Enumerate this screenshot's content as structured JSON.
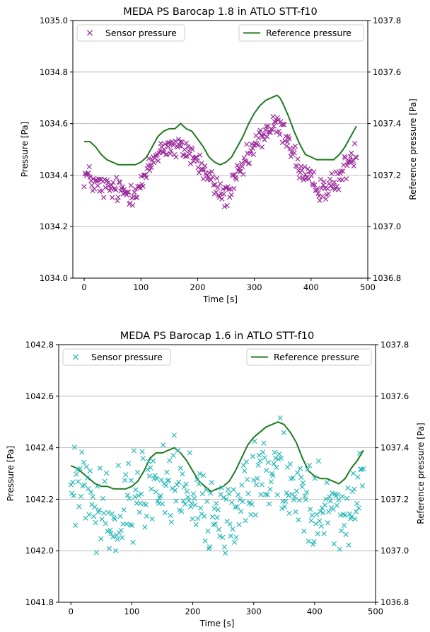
{
  "chart_data": [
    {
      "type": "scatter",
      "title": "MEDA PS Barocap 1.8 in ATLO STT-f10",
      "xlabel": "Time [s]",
      "ylabel": "Pressure [Pa]",
      "y2label": "Reference pressure [Pa]",
      "xlim": [
        -20,
        500
      ],
      "ylim": [
        1034.0,
        1035.0
      ],
      "y2lim": [
        1036.8,
        1037.8
      ],
      "xticks": [
        "0",
        "100",
        "200",
        "300",
        "400",
        "500"
      ],
      "yticks": [
        "1034.0",
        "1034.2",
        "1034.4",
        "1034.6",
        "1034.8",
        "1035.0"
      ],
      "y2ticks": [
        "1036.8",
        "1037.0",
        "1037.2",
        "1037.4",
        "1037.6",
        "1037.8"
      ],
      "grid": "horizontal",
      "sensor_color": "#9b2a9b",
      "reference_color": "#1f7a1f",
      "sensor_noise": 0.035,
      "legend": {
        "sensor_label": "Sensor pressure",
        "sensor_position": "top-left",
        "reference_label": "Reference pressure",
        "reference_position": "top-right"
      },
      "sensor_trend": {
        "x": [
          0,
          10,
          20,
          40,
          60,
          80,
          100,
          110,
          120,
          130,
          140,
          150,
          160,
          170,
          180,
          190,
          200,
          210,
          220,
          230,
          240,
          250,
          260,
          270,
          280,
          290,
          300,
          310,
          320,
          330,
          340,
          350,
          360,
          370,
          380,
          390,
          400,
          410,
          420,
          430,
          440,
          450,
          460,
          470,
          480
        ],
        "y": [
          1034.4,
          1034.39,
          1034.36,
          1034.35,
          1034.34,
          1034.33,
          1034.36,
          1034.4,
          1034.45,
          1034.49,
          1034.51,
          1034.51,
          1034.5,
          1034.5,
          1034.5,
          1034.48,
          1034.45,
          1034.42,
          1034.39,
          1034.36,
          1034.33,
          1034.32,
          1034.35,
          1034.39,
          1034.43,
          1034.47,
          1034.51,
          1034.54,
          1034.57,
          1034.58,
          1034.59,
          1034.57,
          1034.54,
          1034.48,
          1034.42,
          1034.39,
          1034.37,
          1034.36,
          1034.35,
          1034.35,
          1034.36,
          1034.39,
          1034.43,
          1034.47,
          1034.5
        ]
      },
      "reference": {
        "x": [
          0,
          10,
          20,
          30,
          40,
          50,
          60,
          70,
          80,
          90,
          100,
          110,
          120,
          130,
          140,
          150,
          160,
          170,
          180,
          190,
          200,
          210,
          220,
          230,
          240,
          250,
          260,
          270,
          280,
          290,
          300,
          310,
          320,
          330,
          340,
          345,
          350,
          360,
          370,
          380,
          390,
          400,
          410,
          420,
          430,
          440,
          450,
          460,
          470,
          480
        ],
        "y": [
          1037.33,
          1037.33,
          1037.31,
          1037.28,
          1037.26,
          1037.25,
          1037.24,
          1037.24,
          1037.24,
          1037.24,
          1037.25,
          1037.27,
          1037.31,
          1037.35,
          1037.37,
          1037.38,
          1037.38,
          1037.4,
          1037.38,
          1037.37,
          1037.34,
          1037.31,
          1037.27,
          1037.25,
          1037.24,
          1037.25,
          1037.27,
          1037.31,
          1037.35,
          1037.4,
          1037.44,
          1037.47,
          1037.49,
          1037.5,
          1037.51,
          1037.5,
          1037.48,
          1037.43,
          1037.37,
          1037.32,
          1037.28,
          1037.27,
          1037.26,
          1037.26,
          1037.26,
          1037.26,
          1037.28,
          1037.31,
          1037.35,
          1037.39
        ]
      }
    },
    {
      "type": "scatter",
      "title": "MEDA PS Barocap 1.6 in ATLO STT-f10",
      "xlabel": "Time [s]",
      "ylabel": "Pressure [Pa]",
      "y2label": "Reference pressure [Pa]",
      "xlim": [
        -20,
        500
      ],
      "ylim": [
        1041.8,
        1042.8
      ],
      "y2lim": [
        1036.8,
        1037.8
      ],
      "xticks": [
        "0",
        "100",
        "200",
        "300",
        "400",
        "500"
      ],
      "yticks": [
        "1041.8",
        "1042.0",
        "1042.2",
        "1042.4",
        "1042.6",
        "1042.8"
      ],
      "y2ticks": [
        "1036.8",
        "1037.0",
        "1037.2",
        "1037.4",
        "1037.6",
        "1037.8"
      ],
      "grid": "horizontal",
      "sensor_color": "#27b8b8",
      "reference_color": "#1f7a1f",
      "sensor_noise": 0.11,
      "legend": {
        "sensor_label": "Sensor pressure",
        "sensor_position": "top-left",
        "reference_label": "Reference pressure",
        "reference_position": "top-right"
      },
      "sensor_trend": {
        "x": [
          0,
          20,
          40,
          60,
          80,
          100,
          120,
          140,
          160,
          180,
          200,
          220,
          240,
          260,
          280,
          300,
          320,
          340,
          360,
          380,
          400,
          420,
          440,
          460,
          480
        ],
        "y": [
          1042.24,
          1042.22,
          1042.18,
          1042.15,
          1042.14,
          1042.17,
          1042.23,
          1042.27,
          1042.28,
          1042.25,
          1042.2,
          1042.16,
          1042.13,
          1042.15,
          1042.2,
          1042.27,
          1042.32,
          1042.33,
          1042.28,
          1042.2,
          1042.14,
          1042.12,
          1042.14,
          1042.2,
          1042.28
        ]
      },
      "reference": {
        "x": [
          0,
          10,
          20,
          30,
          40,
          50,
          60,
          70,
          80,
          90,
          100,
          110,
          120,
          130,
          140,
          150,
          160,
          170,
          180,
          190,
          200,
          210,
          220,
          230,
          240,
          250,
          260,
          270,
          280,
          290,
          300,
          310,
          320,
          330,
          340,
          350,
          360,
          370,
          380,
          390,
          400,
          410,
          420,
          430,
          440,
          450,
          460,
          470,
          480
        ],
        "y": [
          1037.33,
          1037.32,
          1037.3,
          1037.28,
          1037.26,
          1037.25,
          1037.25,
          1037.24,
          1037.24,
          1037.24,
          1037.25,
          1037.27,
          1037.31,
          1037.36,
          1037.38,
          1037.38,
          1037.39,
          1037.4,
          1037.38,
          1037.35,
          1037.31,
          1037.27,
          1037.25,
          1037.23,
          1037.24,
          1037.25,
          1037.27,
          1037.31,
          1037.36,
          1037.41,
          1037.44,
          1037.46,
          1037.48,
          1037.49,
          1037.5,
          1037.49,
          1037.46,
          1037.42,
          1037.36,
          1037.31,
          1037.29,
          1037.28,
          1037.28,
          1037.27,
          1037.26,
          1037.28,
          1037.32,
          1037.35,
          1037.39
        ]
      }
    }
  ]
}
